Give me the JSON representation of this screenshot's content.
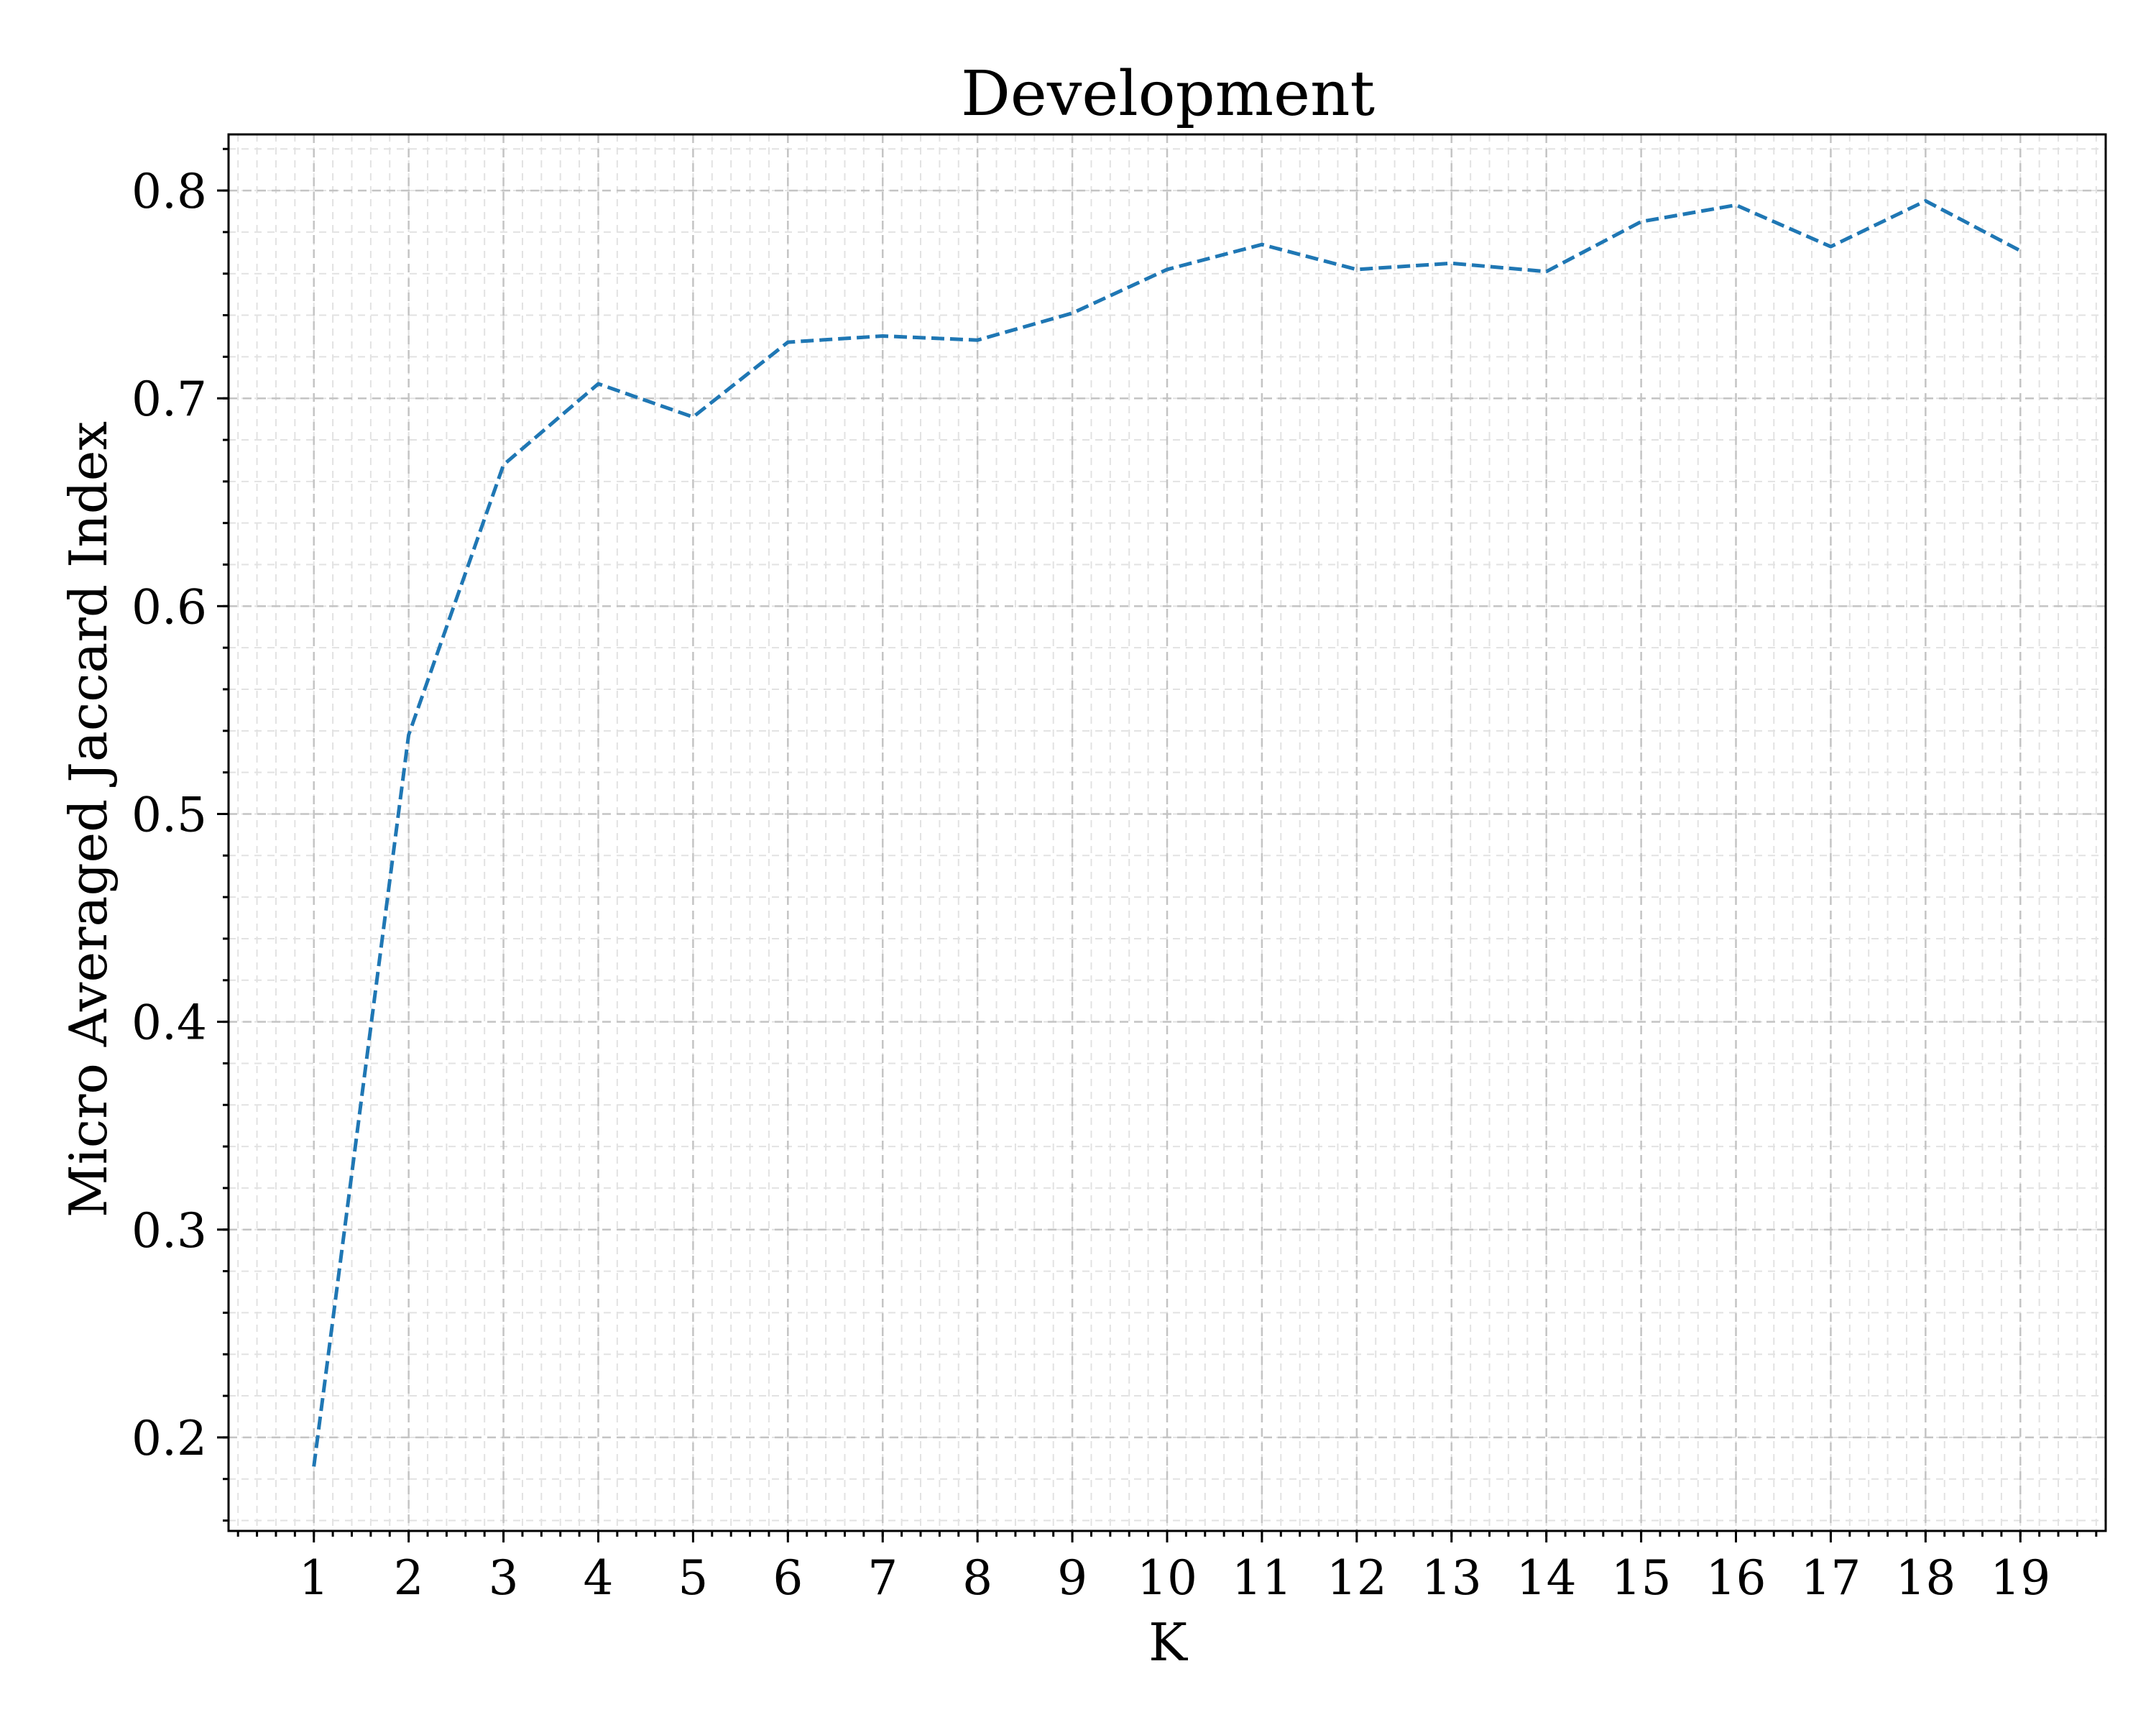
{
  "chart_data": {
    "type": "line",
    "title": "Development",
    "xlabel": "K",
    "ylabel": "Micro Averaged Jaccard Index",
    "xlim": [
      0.1,
      19.9
    ],
    "ylim": [
      0.155,
      0.827
    ],
    "x_ticks": [
      1,
      2,
      3,
      4,
      5,
      6,
      7,
      8,
      9,
      10,
      11,
      12,
      13,
      14,
      15,
      16,
      17,
      18,
      19
    ],
    "x_tick_labels": [
      "1",
      "2",
      "3",
      "4",
      "5",
      "6",
      "7",
      "8",
      "9",
      "10",
      "11",
      "12",
      "13",
      "14",
      "15",
      "16",
      "17",
      "18",
      "19"
    ],
    "y_ticks": [
      0.2,
      0.3,
      0.4,
      0.5,
      0.6,
      0.7,
      0.8
    ],
    "y_tick_labels": [
      "0.2",
      "0.3",
      "0.4",
      "0.5",
      "0.6",
      "0.7",
      "0.8"
    ],
    "x_minor_step": 0.2,
    "y_minor_step": 0.02,
    "grid": true,
    "line_style": "dashed",
    "series": [
      {
        "color": "#1f77b4",
        "x": [
          1,
          2,
          3,
          4,
          5,
          6,
          7,
          8,
          9,
          10,
          11,
          12,
          13,
          14,
          15,
          16,
          17,
          18,
          19
        ],
        "y": [
          0.186,
          0.538,
          0.668,
          0.707,
          0.691,
          0.727,
          0.73,
          0.728,
          0.741,
          0.762,
          0.774,
          0.762,
          0.765,
          0.761,
          0.785,
          0.793,
          0.773,
          0.795,
          0.771
        ]
      }
    ]
  }
}
